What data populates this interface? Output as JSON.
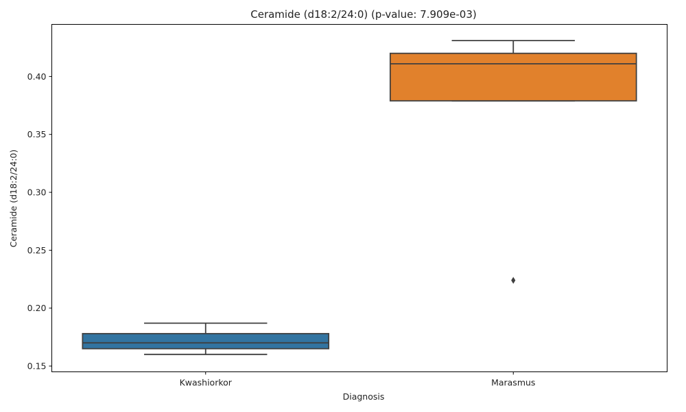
{
  "chart_data": {
    "type": "box",
    "title": "Ceramide (d18:2/24:0) (p-value: 7.909e-03)",
    "xlabel": "Diagnosis",
    "ylabel": "Ceramide (d18:2/24:0)",
    "ylim": [
      0.145,
      0.445
    ],
    "yticks": [
      0.15,
      0.2,
      0.25,
      0.3,
      0.35,
      0.4
    ],
    "ytick_labels": [
      "0.15",
      "0.20",
      "0.25",
      "0.30",
      "0.35",
      "0.40"
    ],
    "grid": false,
    "categories": [
      "Kwashiorkor",
      "Marasmus"
    ],
    "boxes": [
      {
        "category": "Kwashiorkor",
        "whisker_low": 0.16,
        "q1": 0.165,
        "median": 0.17,
        "q3": 0.178,
        "whisker_high": 0.187,
        "outliers": [],
        "color": "#3274a1"
      },
      {
        "category": "Marasmus",
        "whisker_low": 0.379,
        "q1": 0.379,
        "median": 0.411,
        "q3": 0.42,
        "whisker_high": 0.431,
        "outliers": [
          0.224
        ],
        "color": "#e1812c"
      }
    ],
    "line_color": "#3f3f3f"
  }
}
